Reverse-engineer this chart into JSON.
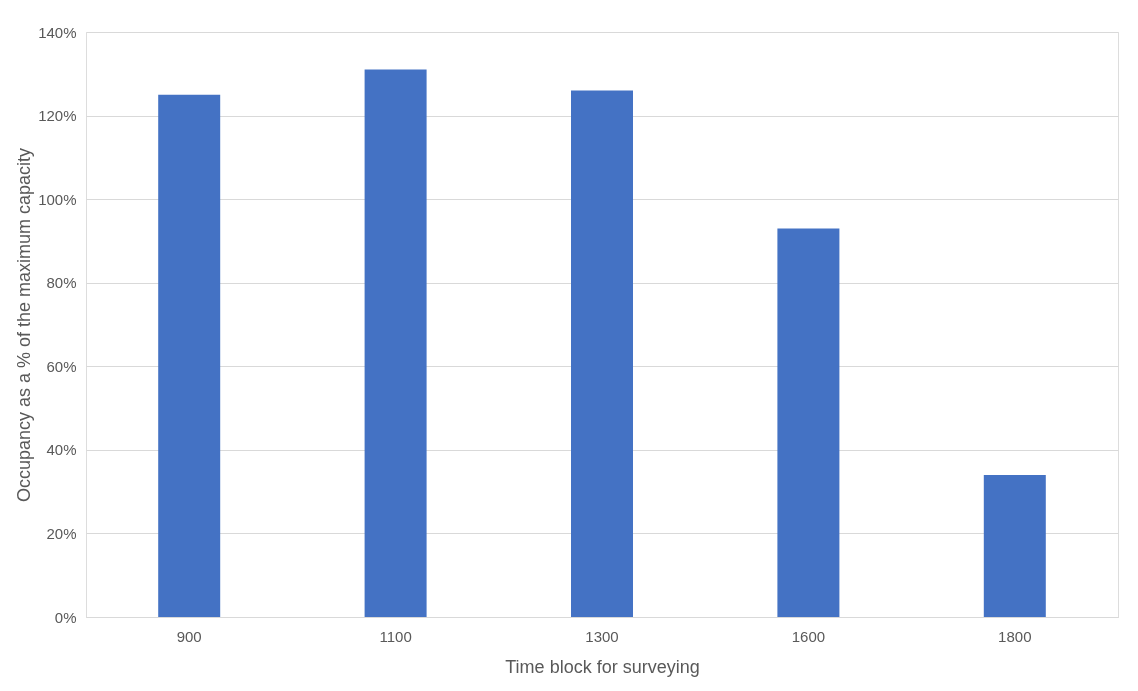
{
  "chart_data": {
    "type": "bar",
    "xlabel": "Time block for surveying",
    "ylabel": "Occupancy as a % of the maximum capacity",
    "categories": [
      "900",
      "1100",
      "1300",
      "1600",
      "1800"
    ],
    "values": [
      125,
      131,
      126,
      93,
      34
    ],
    "color": "#4472c4",
    "ylim": [
      0,
      140
    ],
    "yticks": [
      {
        "value": 0,
        "label": "0%"
      },
      {
        "value": 20,
        "label": "20%"
      },
      {
        "value": 40,
        "label": "40%"
      },
      {
        "value": 60,
        "label": "60%"
      },
      {
        "value": 80,
        "label": "80%"
      },
      {
        "value": 100,
        "label": "100%"
      },
      {
        "value": 120,
        "label": "120%"
      },
      {
        "value": 140,
        "label": "140%"
      }
    ],
    "grid": "y"
  }
}
